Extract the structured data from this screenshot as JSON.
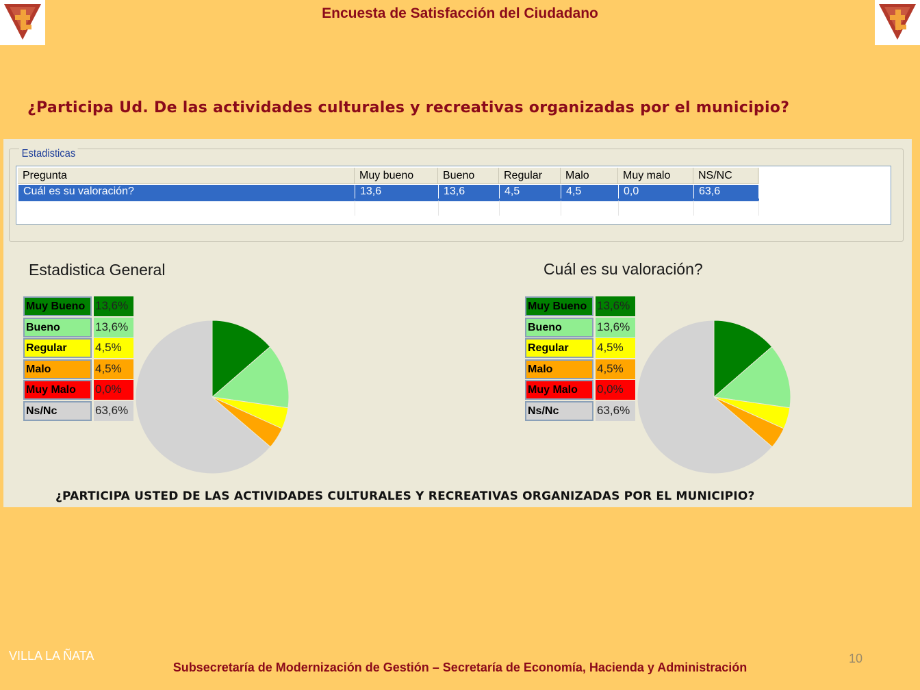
{
  "header": {
    "title": "Encuesta de Satisfacción del Ciudadano"
  },
  "question": "¿Participa Ud. De las actividades culturales y recreativas organizadas por el municipio?",
  "stats_panel": {
    "group_label": "Estadisticas",
    "columns": [
      "Pregunta",
      "Muy bueno",
      "Bueno",
      "Regular",
      "Malo",
      "Muy malo",
      "NS/NC"
    ],
    "row": [
      "Cuál es su valoración?",
      "13,6",
      "13,6",
      "4,5",
      "4,5",
      "0,0",
      "63,6"
    ]
  },
  "charts_area": {
    "left_title": "Estadistica General",
    "right_title": "Cuál es su valoración?",
    "legend": [
      {
        "label": "Muy Bueno",
        "value": "13,6%",
        "color": "#008000",
        "text_color": "#000000"
      },
      {
        "label": "Bueno",
        "value": "13,6%",
        "color": "#90EE90",
        "text_color": "#000000"
      },
      {
        "label": "Regular",
        "value": "4,5%",
        "color": "#FFFF00",
        "text_color": "#000000"
      },
      {
        "label": "Malo",
        "value": "4,5%",
        "color": "#FFA500",
        "text_color": "#000000"
      },
      {
        "label": "Muy Malo",
        "value": "0,0%",
        "color": "#FF0000",
        "text_color": "#000000"
      },
      {
        "label": "Ns/Nc",
        "value": "63,6%",
        "color": "#D3D3D3",
        "text_color": "#000000"
      }
    ],
    "caption": "¿PARTICIPA USTED DE LAS ACTIVIDADES CULTURALES Y RECREATIVAS ORGANIZADAS POR EL MUNICIPIO?"
  },
  "chart_data": [
    {
      "type": "pie",
      "title": "Estadistica General",
      "categories": [
        "Muy Bueno",
        "Bueno",
        "Regular",
        "Malo",
        "Muy Malo",
        "Ns/Nc"
      ],
      "values": [
        13.6,
        13.6,
        4.5,
        4.5,
        0.0,
        63.6
      ],
      "colors": [
        "#008000",
        "#90EE90",
        "#FFFF00",
        "#FFA500",
        "#FF0000",
        "#D3D3D3"
      ]
    },
    {
      "type": "pie",
      "title": "Cuál es su valoración?",
      "categories": [
        "Muy Bueno",
        "Bueno",
        "Regular",
        "Malo",
        "Muy Malo",
        "Ns/Nc"
      ],
      "values": [
        13.6,
        13.6,
        4.5,
        4.5,
        0.0,
        63.6
      ],
      "colors": [
        "#008000",
        "#90EE90",
        "#FFFF00",
        "#FFA500",
        "#FF0000",
        "#D3D3D3"
      ]
    }
  ],
  "footer": {
    "left": "VILLA LA ÑATA",
    "page_number": "10",
    "center": "Subsecretaría de Modernización de Gestión – Secretaría de Economía, Hacienda y Administración"
  },
  "colors": {
    "background": "#FFCC66",
    "title": "#8B0A1A",
    "selection": "#316AC5"
  }
}
